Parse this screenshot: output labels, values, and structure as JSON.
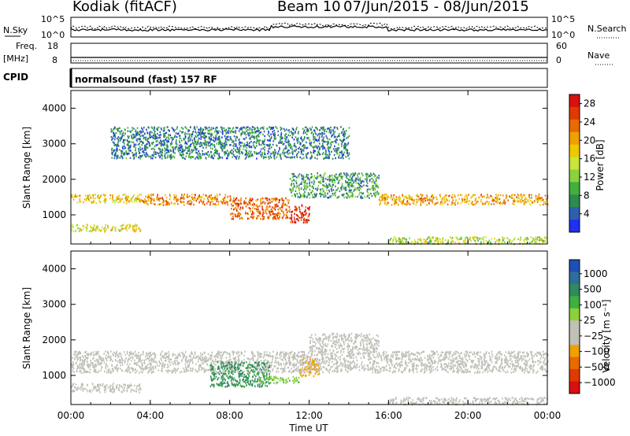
{
  "header": {
    "title": "Kodiak (fitACF)",
    "beam": "Beam 10",
    "date_range": "07/Jun/2015 - 08/Jun/2015"
  },
  "noise_panel": {
    "left_label": "N.Sky",
    "left_ticks": [
      "10^5",
      "10^0"
    ],
    "right_label": "N.Search",
    "right_ticks": [
      "10^5",
      "10^0"
    ]
  },
  "freq_panel": {
    "left_label_top": "Freq.",
    "left_label_bottom": "[MHz]",
    "left_ticks": [
      "18",
      "8"
    ],
    "right_label": "Nave",
    "right_ticks": [
      "60",
      "0"
    ]
  },
  "cpid_panel": {
    "label": "CPID",
    "text": "normalsound (fast) 157 RF"
  },
  "colors": {
    "power_scale": [
      "#1e30f0",
      "#2c5fb0",
      "#2f8a50",
      "#40b040",
      "#8cd23c",
      "#c8e63c",
      "#f0c800",
      "#f0a000",
      "#e86a00",
      "#e03a00",
      "#d81010"
    ],
    "velocity_scale": [
      "#1e50b4",
      "#2f6e9a",
      "#2f8a60",
      "#3faf3f",
      "#8cd03c",
      "#c0c0b8",
      "#c0c0b8",
      "#f0a000",
      "#e86a00",
      "#e03a00",
      "#d81010"
    ],
    "ground_scatter": "#c0c0b8"
  },
  "chart_data": [
    {
      "type": "heatmap",
      "panel": "power",
      "ylabel": "Slant Range [km]",
      "xlabel": "",
      "x_ticks": [
        "00:00",
        "04:00",
        "08:00",
        "12:00",
        "16:00",
        "20:00",
        "00:00"
      ],
      "y_ticks": [
        "1000",
        "2000",
        "3000",
        "4000"
      ],
      "xlim": [
        0,
        24
      ],
      "ylim": [
        180,
        4500
      ],
      "colorbar": {
        "label": "Power [dB]",
        "ticks": [
          "4",
          "8",
          "12",
          "16",
          "20",
          "24",
          "28"
        ],
        "range": [
          0,
          30
        ]
      },
      "regions": [
        {
          "x": [
            0.0,
            3.5
          ],
          "y": [
            1350,
            1600
          ],
          "value": 18
        },
        {
          "x": [
            0.0,
            3.5
          ],
          "y": [
            550,
            750
          ],
          "value": 16
        },
        {
          "x": [
            3.5,
            8.0
          ],
          "y": [
            1300,
            1600
          ],
          "value": 22
        },
        {
          "x": [
            8.0,
            11.0
          ],
          "y": [
            900,
            1500
          ],
          "value": 24
        },
        {
          "x": [
            11.0,
            12.0
          ],
          "y": [
            800,
            1300
          ],
          "value": 28
        },
        {
          "x": [
            11.0,
            15.5
          ],
          "y": [
            1500,
            2200
          ],
          "value": 8
        },
        {
          "x": [
            15.5,
            24.0
          ],
          "y": [
            1300,
            1600
          ],
          "value": 20
        },
        {
          "x": [
            16.0,
            24.0
          ],
          "y": [
            200,
            400
          ],
          "value": 14
        },
        {
          "x": [
            2.0,
            14.0
          ],
          "y": [
            2600,
            3500
          ],
          "value": 6
        }
      ]
    },
    {
      "type": "heatmap",
      "panel": "velocity",
      "ylabel": "Slant Range [km]",
      "xlabel": "Time UT",
      "x_ticks": [
        "00:00",
        "04:00",
        "08:00",
        "12:00",
        "16:00",
        "20:00",
        "00:00"
      ],
      "y_ticks": [
        "1000",
        "2000",
        "3000",
        "4000"
      ],
      "xlim": [
        0,
        24
      ],
      "ylim": [
        180,
        4500
      ],
      "colorbar": {
        "label": "Velocity [m s⁻¹]",
        "ticks": [
          "1000",
          "500",
          "100",
          "25",
          "−25",
          "−100",
          "−500",
          "−1000"
        ],
        "range": [
          -1000,
          1000
        ]
      },
      "regions": [
        {
          "x": [
            0.0,
            24.0
          ],
          "y": [
            1100,
            1700
          ],
          "value": 0
        },
        {
          "x": [
            0.0,
            3.5
          ],
          "y": [
            550,
            800
          ],
          "value": 0
        },
        {
          "x": [
            7.0,
            10.0
          ],
          "y": [
            700,
            1400
          ],
          "value": 500
        },
        {
          "x": [
            9.5,
            11.5
          ],
          "y": [
            800,
            1000
          ],
          "value": 200
        },
        {
          "x": [
            11.5,
            12.5
          ],
          "y": [
            1000,
            1500
          ],
          "value": -300
        },
        {
          "x": [
            12.0,
            15.5
          ],
          "y": [
            1700,
            2200
          ],
          "value": 0
        },
        {
          "x": [
            16.0,
            24.0
          ],
          "y": [
            200,
            400
          ],
          "value": 0
        }
      ]
    }
  ]
}
